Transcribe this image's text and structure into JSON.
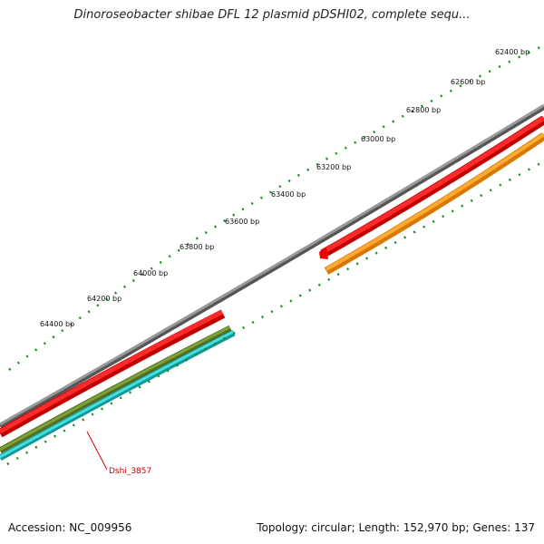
{
  "title": "Dinoroseobacter shibae DFL 12 plasmid pDSHI02, complete sequ...",
  "footer": {
    "accession": "Accession: NC_009956",
    "summary": "Topology: circular; Length: 152,970 bp; Genes: 137"
  },
  "ticks": [
    "62400 bp",
    "62600 bp",
    "62800 bp",
    "63000 bp",
    "63200 bp",
    "63400 bp",
    "63600 bp",
    "63800 bp",
    "64000 bp",
    "64200 bp",
    "64400 bp"
  ],
  "gene_label": "Dshi_3857",
  "colors": {
    "backbone": "#888888",
    "red": "#ee0000",
    "orange": "#ff9900",
    "olive": "#6b8e23",
    "cyan": "#22cccc",
    "tick": "#1a8a1a",
    "label_red": "#cc0000"
  }
}
